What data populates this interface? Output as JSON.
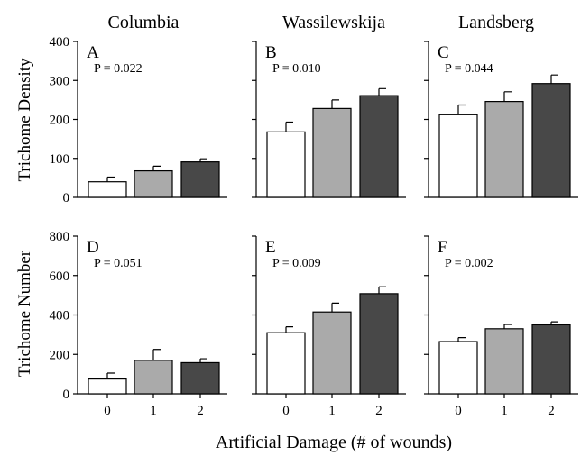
{
  "chart_data": {
    "type": "bar",
    "xlabel": "Artificial Damage (# of wounds)",
    "categories": [
      "0",
      "1",
      "2"
    ],
    "colors": [
      "#ffffff",
      "#aaaaaa",
      "#484848"
    ],
    "columns": [
      "Columbia",
      "Wassilewskija",
      "Landsberg"
    ],
    "rows": [
      {
        "ylabel": "Trichome Density",
        "ylim": [
          0,
          400
        ],
        "yticks": [
          "0",
          "100",
          "200",
          "300",
          "400"
        ],
        "panels": [
          {
            "letter": "A",
            "p": "P = 0.022",
            "values": [
              40,
              68,
              91
            ],
            "errors": [
              12,
              12,
              8
            ]
          },
          {
            "letter": "B",
            "p": "P = 0.010",
            "values": [
              168,
              228,
              261
            ],
            "errors": [
              25,
              22,
              18
            ]
          },
          {
            "letter": "C",
            "p": "P = 0.044",
            "values": [
              212,
              246,
              292
            ],
            "errors": [
              25,
              25,
              22
            ]
          }
        ]
      },
      {
        "ylabel": "Trichome Number",
        "ylim": [
          0,
          800
        ],
        "yticks": [
          "0",
          "200",
          "400",
          "600",
          "800"
        ],
        "panels": [
          {
            "letter": "D",
            "p": "P = 0.051",
            "values": [
              75,
              170,
              158
            ],
            "errors": [
              30,
              55,
              20
            ]
          },
          {
            "letter": "E",
            "p": "P = 0.009",
            "values": [
              310,
              415,
              508
            ],
            "errors": [
              30,
              45,
              35
            ]
          },
          {
            "letter": "F",
            "p": "P = 0.002",
            "values": [
              265,
              330,
              350
            ],
            "errors": [
              20,
              22,
              15
            ]
          }
        ]
      }
    ]
  }
}
